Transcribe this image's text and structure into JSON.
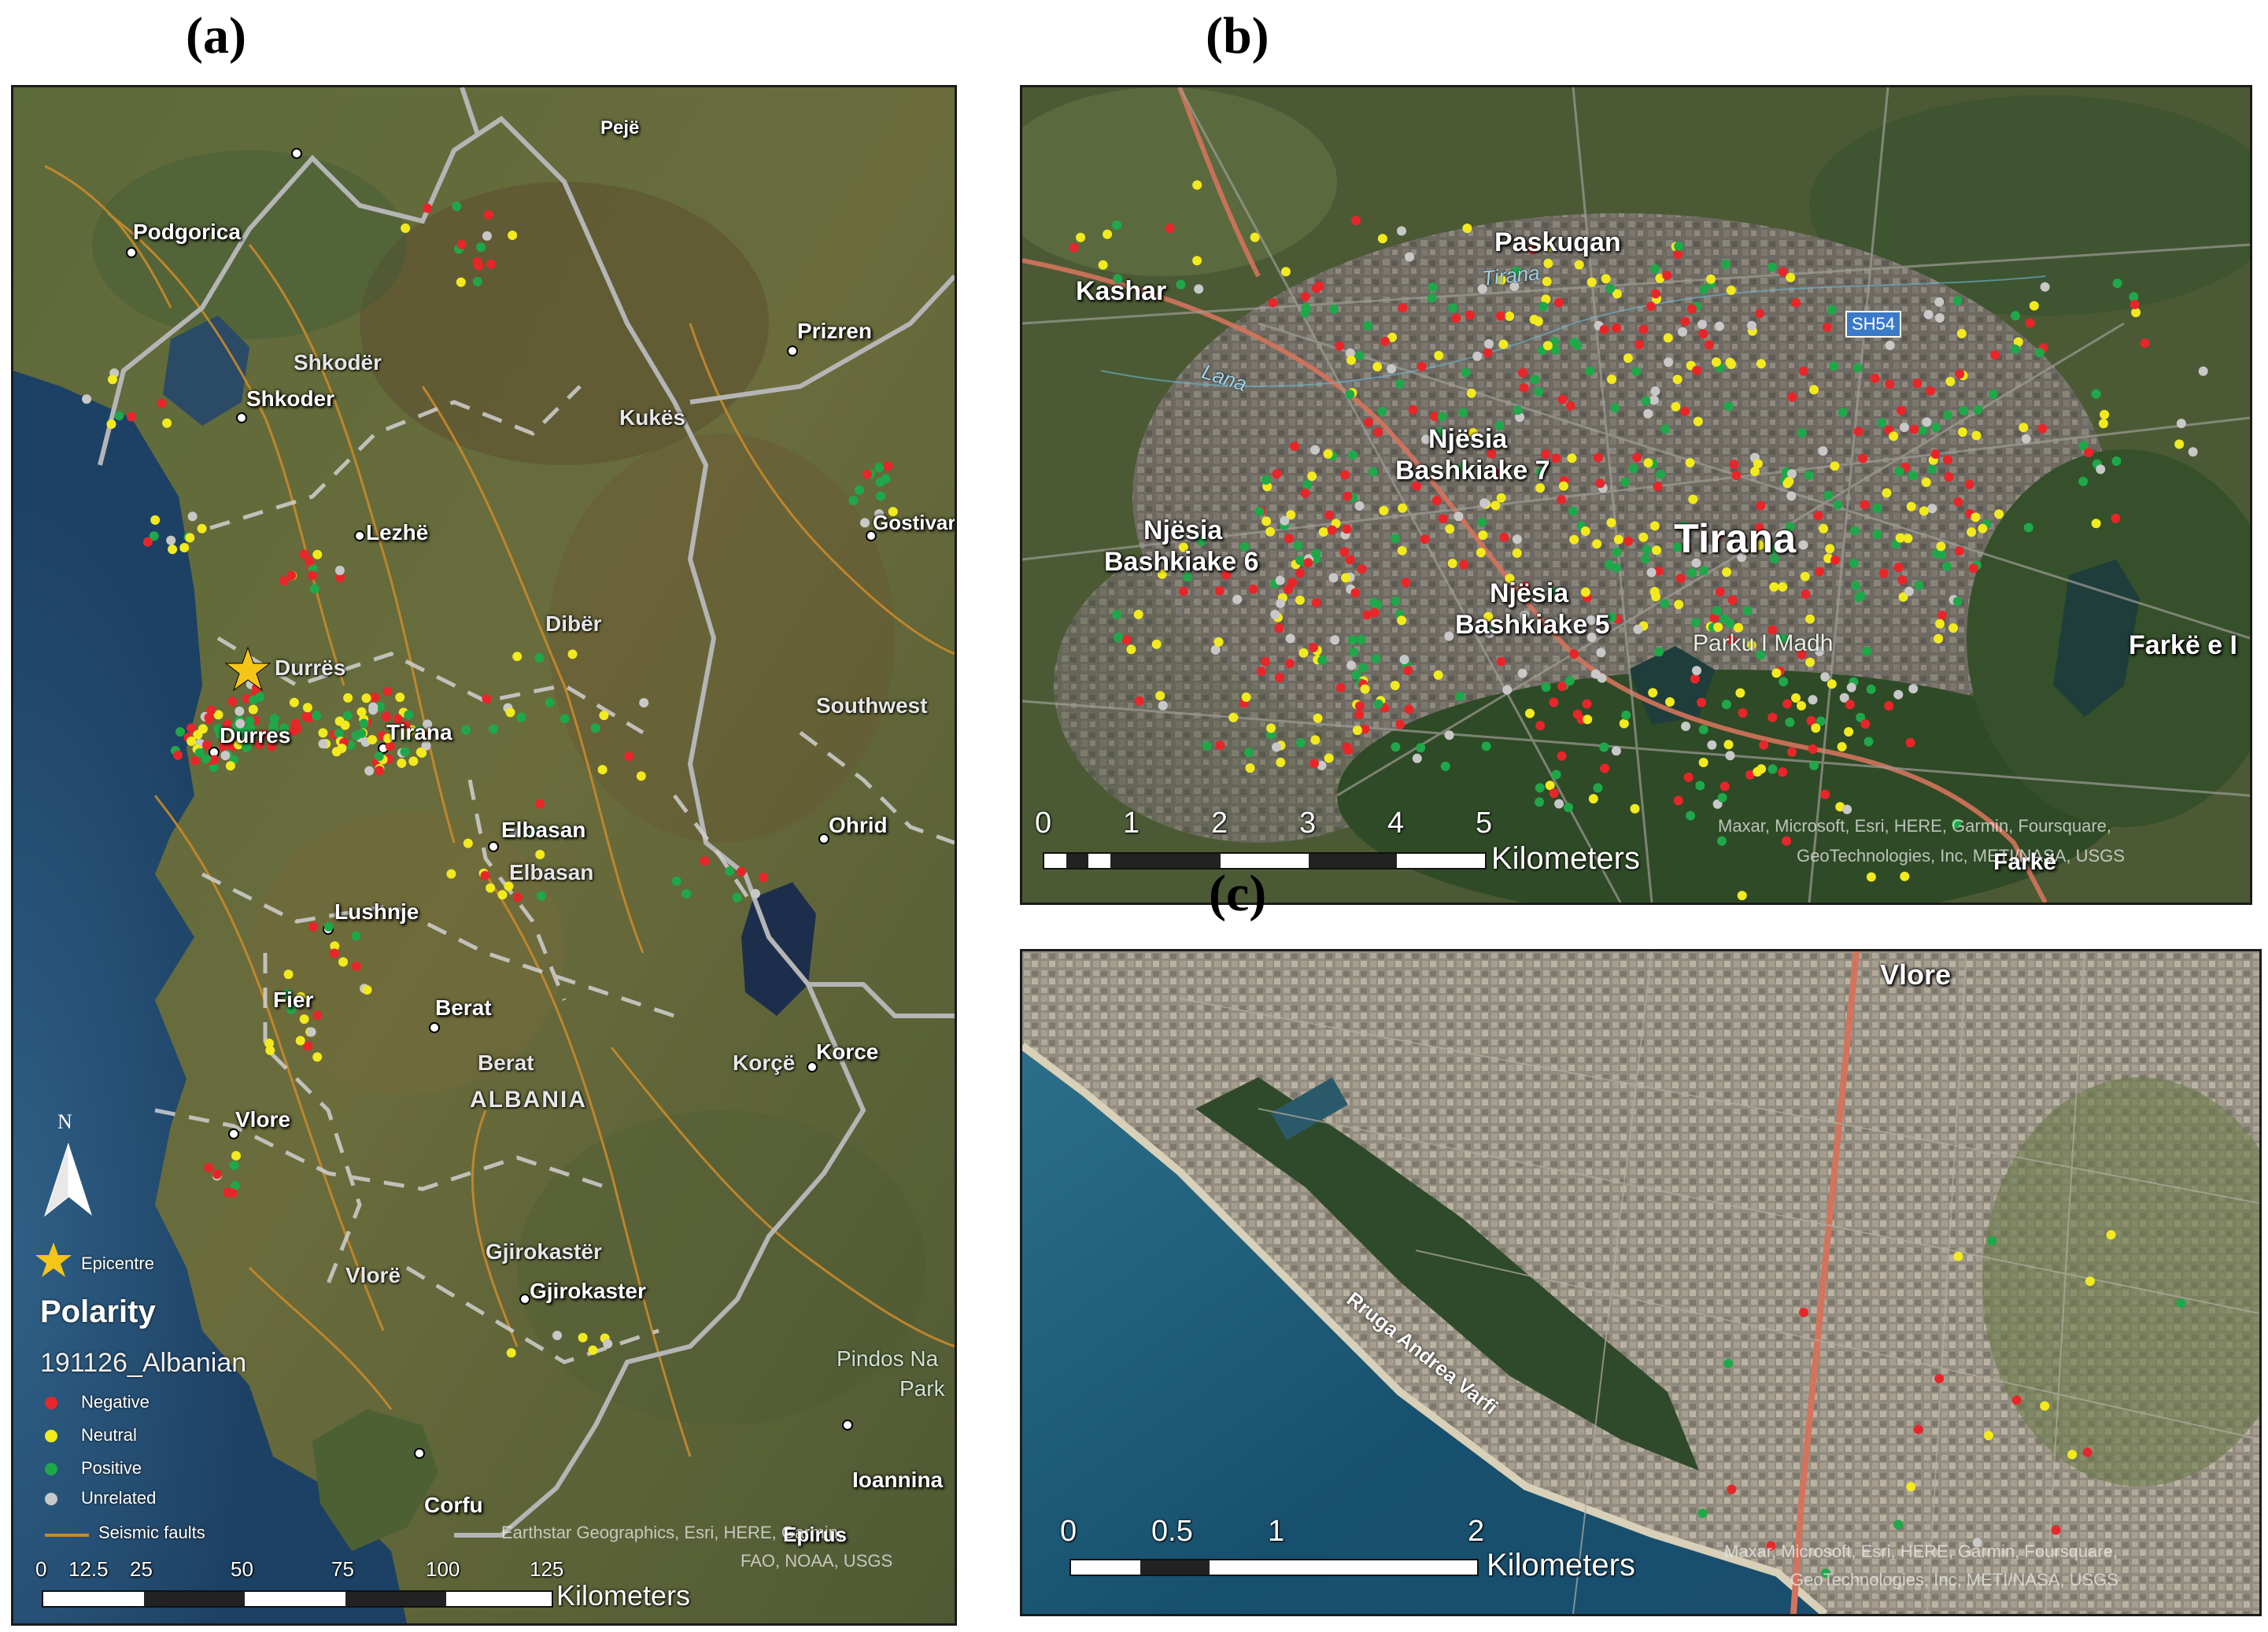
{
  "panels": {
    "a": {
      "letter": "(a)",
      "cities": [
        "Pejë",
        "Podgorica",
        "Prizren",
        "Shkodër",
        "Shkoder",
        "Kukës",
        "Gostivar",
        "Lezhë",
        "Dibër",
        "Durrës",
        "Durres",
        "Tirana",
        "Southwest",
        "Elbasan",
        "Elbasan",
        "Ohrid",
        "Lushnje",
        "Fier",
        "Berat",
        "Berat",
        "Korçë",
        "Korce",
        "ALBANIA",
        "Vlore",
        "Gjirokastër",
        "Vlorë",
        "Gjirokaster",
        "Pindos Na",
        "Park",
        "Ioannina",
        "Corfu",
        "Epirus"
      ],
      "legend": {
        "north": "N",
        "epicentre": "Epicentre",
        "title": "Polarity",
        "subtitle": "191126_Albanian",
        "items": [
          "Negative",
          "Neutral",
          "Positive",
          "Unrelated",
          "Seismic faults"
        ],
        "colors": {
          "negative": "#e8262a",
          "neutral": "#f3ea1d",
          "positive": "#1fa84a",
          "unrelated": "#c8c8c8",
          "fault": "#c98a2a",
          "epicentre": "#f5c518"
        }
      },
      "attribution": [
        "Earthstar Geographics, Esri, HERE, Garmin,",
        "FAO, NOAA, USGS"
      ],
      "scale": {
        "ticks": [
          "0",
          "12.5",
          "25",
          "50",
          "75",
          "100",
          "125"
        ],
        "unit": "Kilometers"
      }
    },
    "b": {
      "letter": "(b)",
      "labels": [
        "Paskuqan",
        "Tirana",
        "SH54",
        "Kashar",
        "Lana",
        "Njësia",
        "Bashkiake 7",
        "Njësia",
        "Bashkiake 6",
        "Tirana",
        "Njësia",
        "Bashkiake 5",
        "Parku I Madh",
        "Farkë e I",
        "Farkë"
      ],
      "attribution": [
        "Maxar, Microsoft, Esri, HERE, Garmin, Foursquare,",
        "GeoTechnologies, Inc, METI/NASA, USGS"
      ],
      "scale": {
        "ticks": [
          "0",
          "1",
          "2",
          "3",
          "4",
          "5"
        ],
        "unit": "Kilometers"
      }
    },
    "c": {
      "letter": "(c)",
      "labels": [
        "Vlore",
        "Rruga Andrea Varfi"
      ],
      "attribution": [
        "Maxar, Microsoft, Esri, HERE, Garmin, Foursquare,",
        "GeoTechnologies, Inc, METI/NASA, USGS"
      ],
      "scale": {
        "ticks": [
          "0",
          "0.5",
          "1",
          "2"
        ],
        "unit": "Kilometers"
      }
    }
  }
}
